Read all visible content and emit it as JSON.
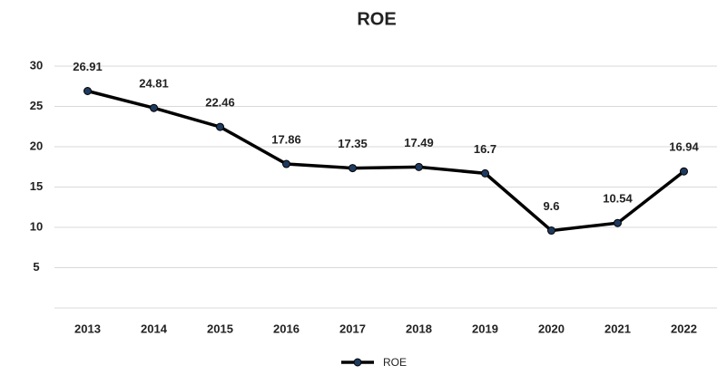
{
  "chart_data": {
    "type": "line",
    "title": "ROE",
    "categories": [
      "2013",
      "2014",
      "2015",
      "2016",
      "2017",
      "2018",
      "2019",
      "2020",
      "2021",
      "2022"
    ],
    "series": [
      {
        "name": "ROE",
        "color": "#000000",
        "values": [
          26.91,
          24.81,
          22.46,
          17.86,
          17.35,
          17.49,
          16.7,
          9.6,
          10.54,
          16.94
        ]
      }
    ],
    "ylim": [
      0,
      30
    ],
    "yticks": [
      5,
      10,
      15,
      20,
      25,
      30
    ],
    "grid": true,
    "legend": "bottom"
  }
}
